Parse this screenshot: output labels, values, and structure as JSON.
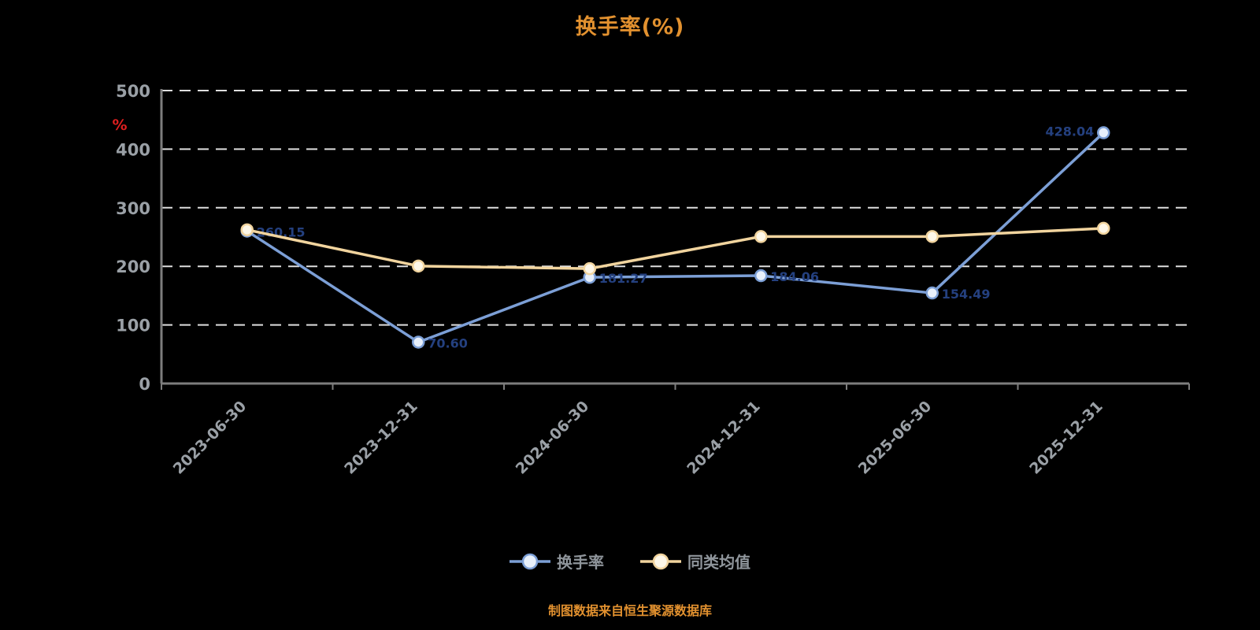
{
  "title": "换手率(%)",
  "footer": "制图数据来自恒生聚源数据库",
  "y_axis": {
    "unit_label": "%",
    "unit_color": "#e01f1f",
    "tick_color": "#9aa0a6"
  },
  "legend": {
    "items": [
      {
        "label": "换手率"
      },
      {
        "label": "同类均值"
      }
    ]
  },
  "chart_data": {
    "type": "line",
    "title": "换手率(%)",
    "categories": [
      "2023-06-30",
      "2023-12-31",
      "2024-06-30",
      "2024-12-31",
      "2025-06-30",
      "2025-12-31"
    ],
    "series": [
      {
        "name": "换手率",
        "color": "#7c9fd6",
        "marker_fill": "#e8f0fb",
        "label_color": "#24407f",
        "show_point_labels": true,
        "values": [
          260.15,
          70.6,
          181.27,
          184.06,
          154.49,
          428.04
        ]
      },
      {
        "name": "同类均值",
        "color": "#f1d49e",
        "marker_fill": "#fdf7e8",
        "label_color": "#6e5a2a",
        "show_point_labels": false,
        "values": [
          262.3,
          200.5,
          196.0,
          250.8,
          250.9,
          264.9
        ]
      }
    ],
    "xlabel": "",
    "ylabel": "%",
    "ylim": [
      0,
      500
    ],
    "ytick_step": 100,
    "grid": true,
    "grid_style": "dashed",
    "legend_position": "bottom"
  }
}
